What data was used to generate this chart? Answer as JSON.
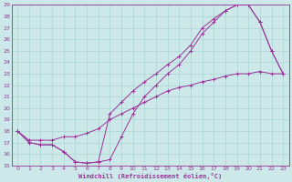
{
  "xlabel": "Windchill (Refroidissement éolien,°C)",
  "bg_color": "#cce8e8",
  "line_color": "#993399",
  "grid_color": "#aad4d4",
  "xlim": [
    -0.5,
    23.5
  ],
  "ylim": [
    15,
    29
  ],
  "xticks": [
    0,
    1,
    2,
    3,
    4,
    5,
    6,
    7,
    8,
    9,
    10,
    11,
    12,
    13,
    14,
    15,
    16,
    17,
    18,
    19,
    20,
    21,
    22,
    23
  ],
  "yticks": [
    15,
    16,
    17,
    18,
    19,
    20,
    21,
    22,
    23,
    24,
    25,
    26,
    27,
    28,
    29
  ],
  "line1_x": [
    0,
    1,
    2,
    3,
    4,
    5,
    6,
    7,
    8,
    9,
    10,
    11,
    12,
    13,
    14,
    15,
    16,
    17,
    18,
    19,
    20,
    21,
    22,
    23
  ],
  "line1_y": [
    18.0,
    17.0,
    16.8,
    16.8,
    16.2,
    15.3,
    15.2,
    15.3,
    15.5,
    17.5,
    19.5,
    21.0,
    22.0,
    23.0,
    23.8,
    25.0,
    26.5,
    27.5,
    28.5,
    29.0,
    29.0,
    27.5,
    25.0,
    23.0
  ],
  "line2_x": [
    0,
    1,
    2,
    3,
    4,
    5,
    6,
    7,
    8,
    9,
    10,
    11,
    12,
    13,
    14,
    15,
    16,
    17,
    18,
    19,
    20,
    21,
    22,
    23
  ],
  "line2_y": [
    18.0,
    17.0,
    16.8,
    16.8,
    16.2,
    15.3,
    15.2,
    15.3,
    19.5,
    20.5,
    21.5,
    22.3,
    23.0,
    23.8,
    24.5,
    25.5,
    27.0,
    27.8,
    28.5,
    29.0,
    29.0,
    27.5,
    25.0,
    23.0
  ],
  "line3_x": [
    0,
    1,
    2,
    3,
    4,
    5,
    6,
    7,
    8,
    9,
    10,
    11,
    12,
    13,
    14,
    15,
    16,
    17,
    18,
    19,
    20,
    21,
    22,
    23
  ],
  "line3_y": [
    18.0,
    17.2,
    17.2,
    17.2,
    17.5,
    17.5,
    17.8,
    18.2,
    19.0,
    19.5,
    20.0,
    20.5,
    21.0,
    21.5,
    21.8,
    22.0,
    22.3,
    22.5,
    22.8,
    23.0,
    23.0,
    23.2,
    23.0,
    23.0
  ]
}
